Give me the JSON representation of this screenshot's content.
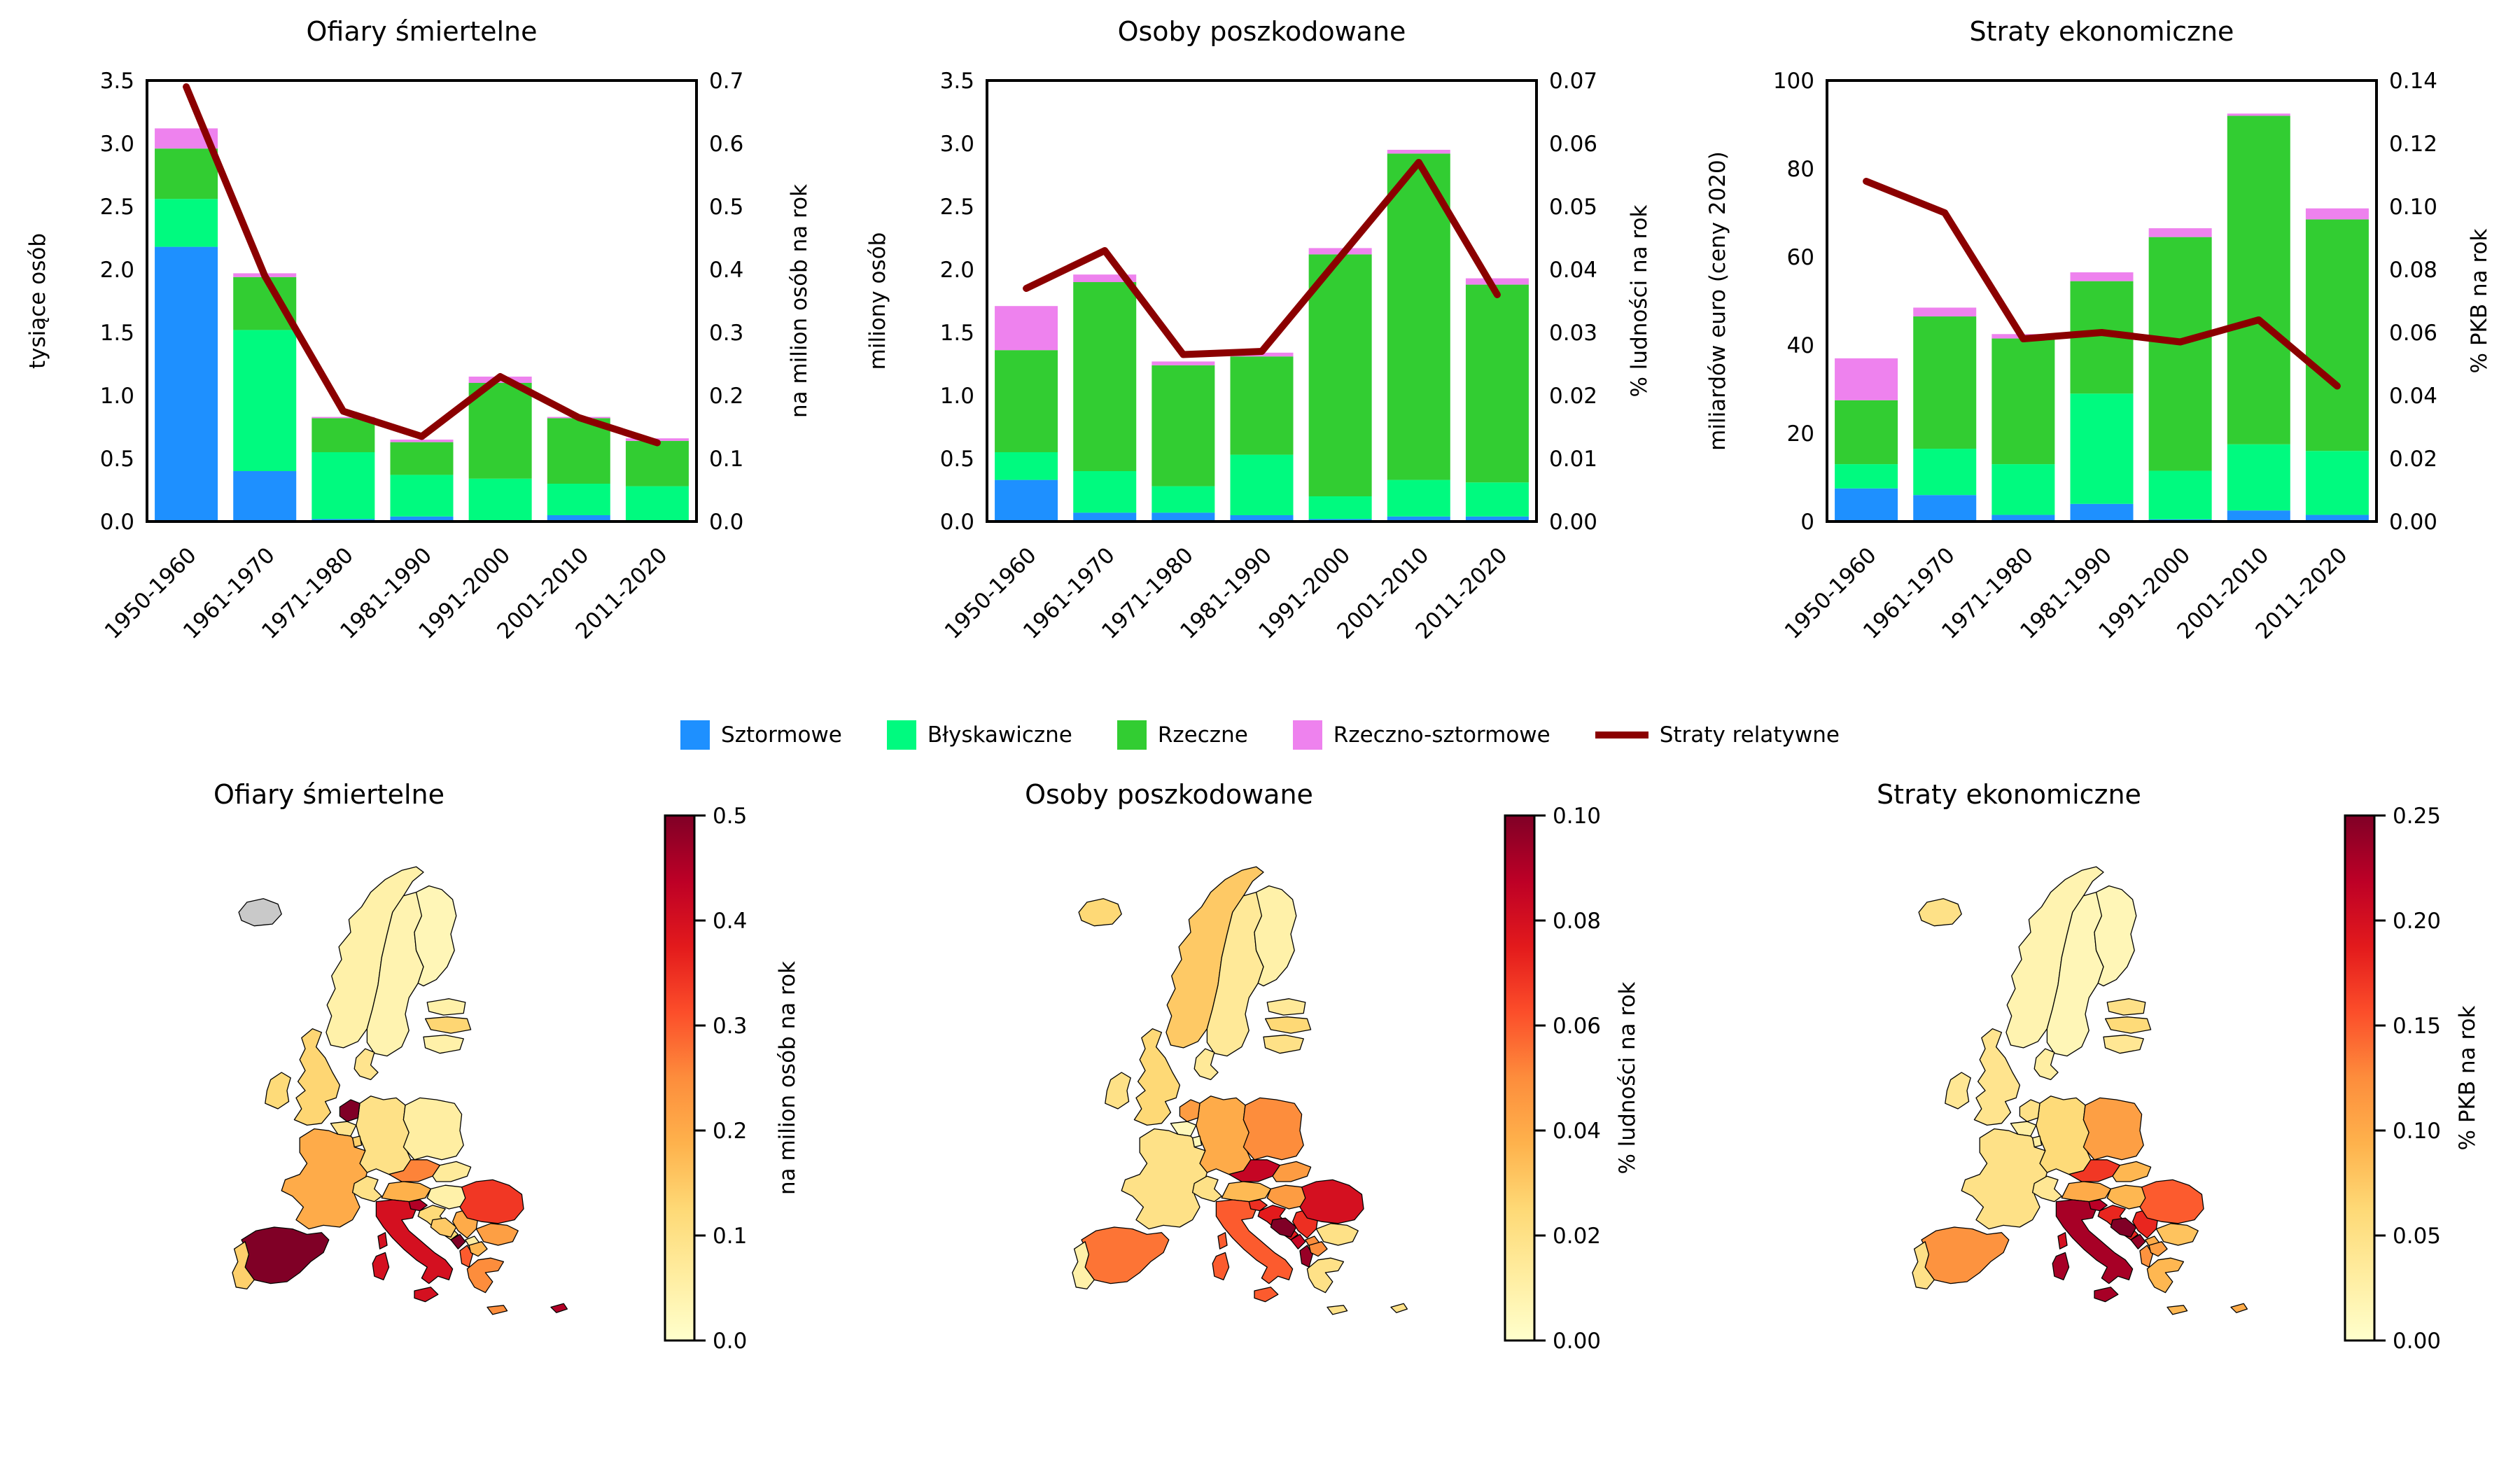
{
  "colors": {
    "sztormowe": "#1E90FF",
    "blyskawiczne": "#00FA7F",
    "rzeczne": "#32CD32",
    "rzeczno_sztormowe": "#EE82EE",
    "trend_line": "#8B0000",
    "colormap_ylorrd": [
      "#ffffcc",
      "#ffeda0",
      "#fed976",
      "#feb24c",
      "#fd8d3c",
      "#fc4e2a",
      "#e31a1c",
      "#bd0026",
      "#800026"
    ],
    "no_data": "#c9c9c9",
    "map_border": "#000000"
  },
  "legend": {
    "items": [
      {
        "label": "Sztormowe",
        "color": "#1E90FF",
        "type": "patch"
      },
      {
        "label": "Błyskawiczne",
        "color": "#00FA7F",
        "type": "patch"
      },
      {
        "label": "Rzeczne",
        "color": "#32CD32",
        "type": "patch"
      },
      {
        "label": "Rzeczno-sztormowe",
        "color": "#EE82EE",
        "type": "patch"
      },
      {
        "label": "Straty relatywne",
        "color": "#8B0000",
        "type": "line"
      }
    ]
  },
  "chart_data": [
    {
      "type": "bar",
      "title": "Ofiary śmiertelne",
      "ylabel_left": "tysiące osób",
      "ylabel_right": "na milion osób na rok",
      "ylim_left": [
        0,
        3.5
      ],
      "yticks_left": [
        "0.0",
        "0.5",
        "1.0",
        "1.5",
        "2.0",
        "2.5",
        "3.0",
        "3.5"
      ],
      "ylim_right": [
        0,
        0.7
      ],
      "yticks_right": [
        "0.0",
        "0.1",
        "0.2",
        "0.3",
        "0.4",
        "0.5",
        "0.6",
        "0.7"
      ],
      "categories": [
        "1950-1960",
        "1961-1970",
        "1971-1980",
        "1981-1990",
        "1991-2000",
        "2001-2010",
        "2011-2020"
      ],
      "series": [
        {
          "name": "Sztormowe",
          "values": [
            2.18,
            0.4,
            0.02,
            0.04,
            0.01,
            0.05,
            0.01
          ]
        },
        {
          "name": "Błyskawiczne",
          "values": [
            0.38,
            1.12,
            0.53,
            0.33,
            0.33,
            0.25,
            0.27
          ]
        },
        {
          "name": "Rzeczne",
          "values": [
            0.4,
            0.42,
            0.27,
            0.26,
            0.76,
            0.52,
            0.36
          ]
        },
        {
          "name": "Rzeczno-sztormowe",
          "values": [
            0.16,
            0.03,
            0.01,
            0.02,
            0.05,
            0.01,
            0.02
          ]
        }
      ],
      "line": {
        "name": "Straty relatywne",
        "axis": "right",
        "values": [
          0.69,
          0.39,
          0.175,
          0.135,
          0.23,
          0.165,
          0.125
        ]
      }
    },
    {
      "type": "bar",
      "title": "Osoby poszkodowane",
      "ylabel_left": "miliony osób",
      "ylabel_right": "% ludności na rok",
      "ylim_left": [
        0,
        3.5
      ],
      "yticks_left": [
        "0.0",
        "0.5",
        "1.0",
        "1.5",
        "2.0",
        "2.5",
        "3.0",
        "3.5"
      ],
      "ylim_right": [
        0,
        0.07
      ],
      "yticks_right": [
        "0.00",
        "0.01",
        "0.02",
        "0.03",
        "0.04",
        "0.05",
        "0.06",
        "0.07"
      ],
      "categories": [
        "1950-1960",
        "1961-1970",
        "1971-1980",
        "1981-1990",
        "1991-2000",
        "2001-2010",
        "2011-2020"
      ],
      "series": [
        {
          "name": "Sztormowe",
          "values": [
            0.33,
            0.07,
            0.07,
            0.05,
            0.02,
            0.04,
            0.04
          ]
        },
        {
          "name": "Błyskawiczne",
          "values": [
            0.22,
            0.33,
            0.21,
            0.48,
            0.18,
            0.29,
            0.27
          ]
        },
        {
          "name": "Rzeczne",
          "values": [
            0.81,
            1.5,
            0.96,
            0.78,
            1.92,
            2.59,
            1.57
          ]
        },
        {
          "name": "Rzeczno-sztormowe",
          "values": [
            0.35,
            0.06,
            0.03,
            0.03,
            0.05,
            0.03,
            0.05
          ]
        }
      ],
      "line": {
        "name": "Straty relatywne",
        "axis": "right",
        "values": [
          0.037,
          0.043,
          0.0265,
          0.027,
          0.042,
          0.057,
          0.036
        ]
      }
    },
    {
      "type": "bar",
      "title": "Straty ekonomiczne",
      "ylabel_left": "miliardów euro (ceny 2020)",
      "ylabel_right": "% PKB na rok",
      "ylim_left": [
        0,
        100
      ],
      "yticks_left": [
        "0",
        "20",
        "40",
        "60",
        "80",
        "100"
      ],
      "ylim_right": [
        0,
        0.14
      ],
      "yticks_right": [
        "0.00",
        "0.02",
        "0.04",
        "0.06",
        "0.08",
        "0.10",
        "0.12",
        "0.14"
      ],
      "categories": [
        "1950-1960",
        "1961-1970",
        "1971-1980",
        "1981-1990",
        "1991-2000",
        "2001-2010",
        "2011-2020"
      ],
      "series": [
        {
          "name": "Sztormowe",
          "values": [
            7.5,
            6,
            1.5,
            4,
            0.5,
            2.5,
            1.5
          ]
        },
        {
          "name": "Błyskawiczne",
          "values": [
            5.5,
            10.5,
            11.5,
            25,
            11,
            15,
            14.5
          ]
        },
        {
          "name": "Rzeczne",
          "values": [
            14.5,
            30,
            28.5,
            25.5,
            53,
            74.5,
            52.5
          ]
        },
        {
          "name": "Rzeczno-sztormowe",
          "values": [
            9.5,
            2,
            1,
            2,
            2,
            0.5,
            2.5
          ]
        }
      ],
      "line": {
        "name": "Straty relatywne",
        "axis": "right",
        "values": [
          0.108,
          0.098,
          0.058,
          0.06,
          0.057,
          0.064,
          0.043
        ]
      }
    },
    {
      "type": "choropleth",
      "title": "Ofiary śmiertelne",
      "colorbar": {
        "min": 0,
        "max": 0.5,
        "ticks": [
          "0.0",
          "0.1",
          "0.2",
          "0.3",
          "0.4",
          "0.5"
        ],
        "label": "na milion osób na rok"
      },
      "values": {
        "iceland": null,
        "norway": 0.05,
        "sweden": 0.04,
        "finland": 0.03,
        "estonia": 0.05,
        "latvia": 0.13,
        "lithuania": 0.05,
        "denmark": 0.09,
        "ireland": 0.12,
        "uk": 0.13,
        "netherlands": 0.5,
        "belgium": 0.09,
        "luxembourg": 0.14,
        "germany": 0.1,
        "poland": 0.06,
        "czechia": 0.26,
        "slovakia": 0.07,
        "austria": 0.19,
        "hungary": 0.05,
        "switzerland": 0.1,
        "france": 0.2,
        "spain": 0.5,
        "portugal": 0.14,
        "italy": 0.4,
        "corsica": 0.4,
        "slovenia": 0.45,
        "croatia": 0.12,
        "bosnia": 0.15,
        "serbia": 0.2,
        "montenegro": 0.5,
        "kosovo": 0.06,
        "albania": 0.3,
        "north_macedonia": 0.18,
        "greece": 0.25,
        "bulgaria": 0.22,
        "romania": 0.34,
        "cyprus": 0.45
      }
    },
    {
      "type": "choropleth",
      "title": "Osoby poszkodowane",
      "colorbar": {
        "min": 0,
        "max": 0.1,
        "ticks": [
          "0.00",
          "0.02",
          "0.04",
          "0.06",
          "0.08",
          "0.10"
        ],
        "label": "% ludności na rok"
      },
      "values": {
        "iceland": 0.025,
        "norway": 0.03,
        "sweden": 0.015,
        "finland": 0.01,
        "estonia": 0.015,
        "latvia": 0.025,
        "lithuania": 0.02,
        "denmark": 0.015,
        "ireland": 0.02,
        "uk": 0.025,
        "netherlands": 0.045,
        "belgium": 0.005,
        "luxembourg": 0.005,
        "germany": 0.04,
        "poland": 0.05,
        "czechia": 0.085,
        "slovakia": 0.045,
        "austria": 0.035,
        "hungary": 0.045,
        "switzerland": 0.02,
        "france": 0.02,
        "spain": 0.055,
        "portugal": 0.01,
        "italy": 0.06,
        "corsica": 0.06,
        "slovenia": 0.07,
        "croatia": 0.075,
        "bosnia": 0.1,
        "serbia": 0.07,
        "montenegro": 0.085,
        "kosovo": 0.05,
        "albania": 0.095,
        "north_macedonia": 0.05,
        "greece": 0.02,
        "bulgaria": 0.02,
        "romania": 0.08,
        "cyprus": 0.02
      }
    },
    {
      "type": "choropleth",
      "title": "Straty ekonomiczne",
      "colorbar": {
        "min": 0,
        "max": 0.25,
        "ticks": [
          "0.00",
          "0.05",
          "0.10",
          "0.15",
          "0.20",
          "0.25"
        ],
        "label": "% PKB na rok"
      },
      "values": {
        "iceland": 0.05,
        "norway": 0.02,
        "sweden": 0.015,
        "finland": 0.015,
        "estonia": 0.05,
        "latvia": 0.06,
        "lithuania": 0.04,
        "denmark": 0.03,
        "ireland": 0.04,
        "uk": 0.045,
        "netherlands": 0.05,
        "belgium": 0.03,
        "luxembourg": 0.03,
        "germany": 0.06,
        "poland": 0.11,
        "czechia": 0.17,
        "slovakia": 0.09,
        "austria": 0.1,
        "hungary": 0.09,
        "switzerland": 0.04,
        "france": 0.05,
        "spain": 0.12,
        "portugal": 0.05,
        "italy": 0.23,
        "corsica": 0.2,
        "slovenia": 0.22,
        "croatia": 0.18,
        "bosnia": 0.25,
        "serbia": 0.18,
        "montenegro": 0.24,
        "kosovo": 0.1,
        "albania": 0.12,
        "north_macedonia": 0.11,
        "greece": 0.09,
        "bulgaria": 0.08,
        "romania": 0.15,
        "cyprus": 0.1
      }
    }
  ]
}
